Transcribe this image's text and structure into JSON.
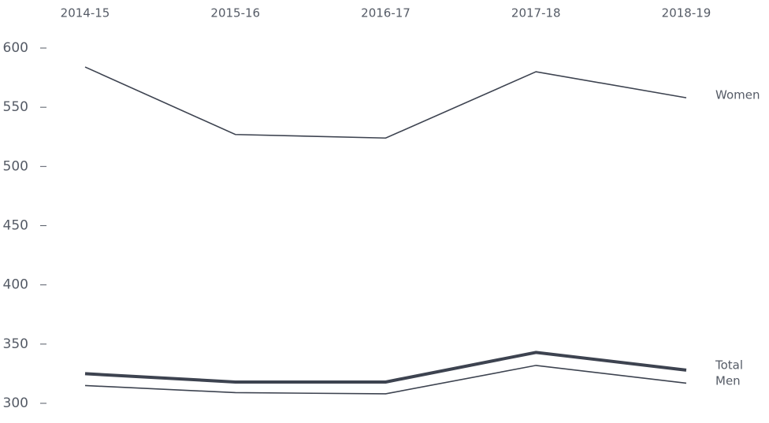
{
  "chart_data": {
    "type": "line",
    "categories": [
      "2014-15",
      "2015-16",
      "2016-17",
      "2017-18",
      "2018-19"
    ],
    "series": [
      {
        "name": "Women",
        "color": "#3d4350",
        "values": [
          584,
          527,
          524,
          580,
          558
        ]
      },
      {
        "name": "Total",
        "color": "#3d4350",
        "values": [
          325,
          318,
          318,
          343,
          328
        ]
      },
      {
        "name": "Men",
        "color": "#3d4350",
        "values": [
          315,
          309,
          308,
          332,
          317
        ]
      }
    ],
    "ylim": [
      300,
      600
    ],
    "yticks": [
      300,
      350,
      400,
      450,
      500,
      550,
      600
    ]
  }
}
